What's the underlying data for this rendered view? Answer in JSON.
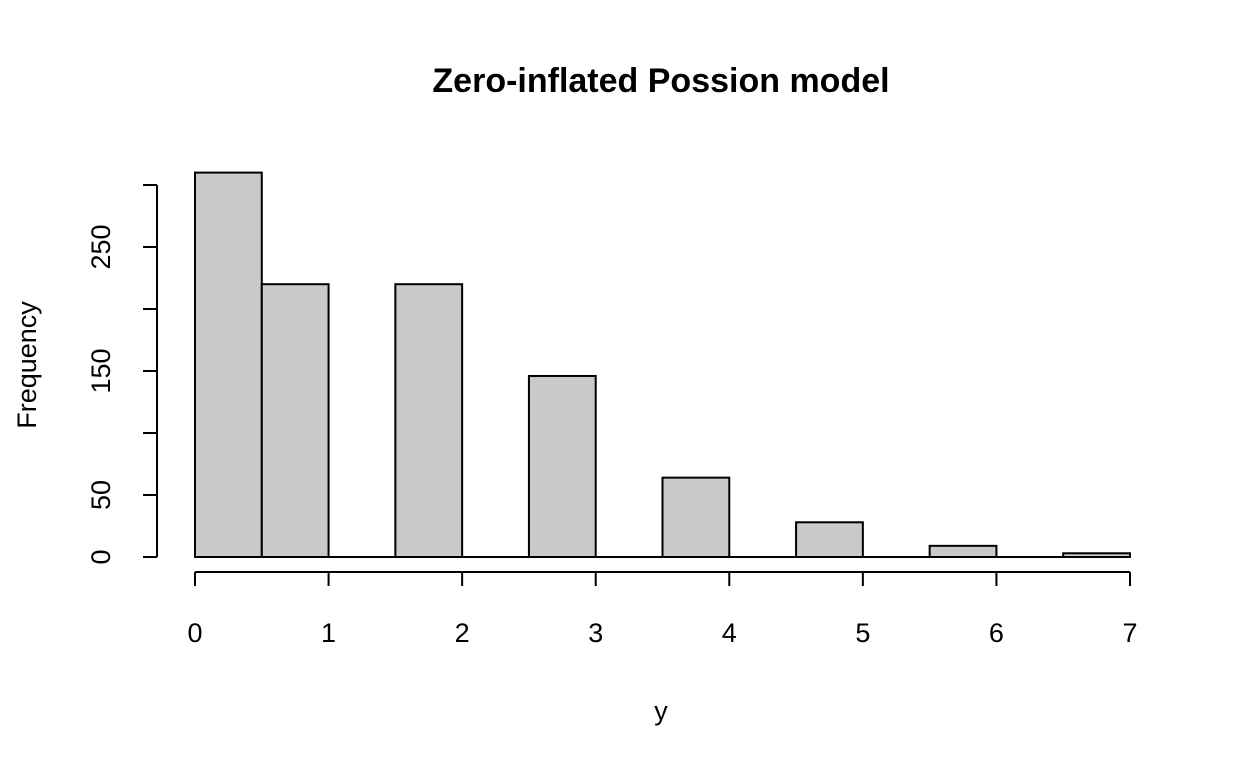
{
  "chart_data": {
    "type": "bar",
    "title": "Zero-inflated Possion model",
    "xlabel": "y",
    "ylabel": "Frequency",
    "bar_color": "#c9c9c9",
    "bar_edge_color": "#000000",
    "bins": [
      {
        "start": 0.0,
        "end": 0.5,
        "count": 310
      },
      {
        "start": 0.5,
        "end": 1.0,
        "count": 220
      },
      {
        "start": 1.0,
        "end": 1.5,
        "count": 0
      },
      {
        "start": 1.5,
        "end": 2.0,
        "count": 220
      },
      {
        "start": 2.0,
        "end": 2.5,
        "count": 0
      },
      {
        "start": 2.5,
        "end": 3.0,
        "count": 146
      },
      {
        "start": 3.0,
        "end": 3.5,
        "count": 0
      },
      {
        "start": 3.5,
        "end": 4.0,
        "count": 64
      },
      {
        "start": 4.0,
        "end": 4.5,
        "count": 0
      },
      {
        "start": 4.5,
        "end": 5.0,
        "count": 28
      },
      {
        "start": 5.0,
        "end": 5.5,
        "count": 0
      },
      {
        "start": 5.5,
        "end": 6.0,
        "count": 9
      },
      {
        "start": 6.0,
        "end": 6.5,
        "count": 0
      },
      {
        "start": 6.5,
        "end": 7.0,
        "count": 3
      }
    ],
    "xlim": [
      0,
      7
    ],
    "ylim": [
      0,
      300
    ],
    "x_ticks": [
      0,
      1,
      2,
      3,
      4,
      5,
      6,
      7
    ],
    "x_tick_labels": [
      "0",
      "1",
      "2",
      "3",
      "4",
      "5",
      "6",
      "7"
    ],
    "y_ticks": [
      0,
      50,
      100,
      150,
      200,
      250,
      300
    ],
    "y_tick_labels": [
      "0",
      "50",
      "",
      "150",
      "",
      "250",
      ""
    ],
    "grid": false,
    "legend": "none"
  }
}
